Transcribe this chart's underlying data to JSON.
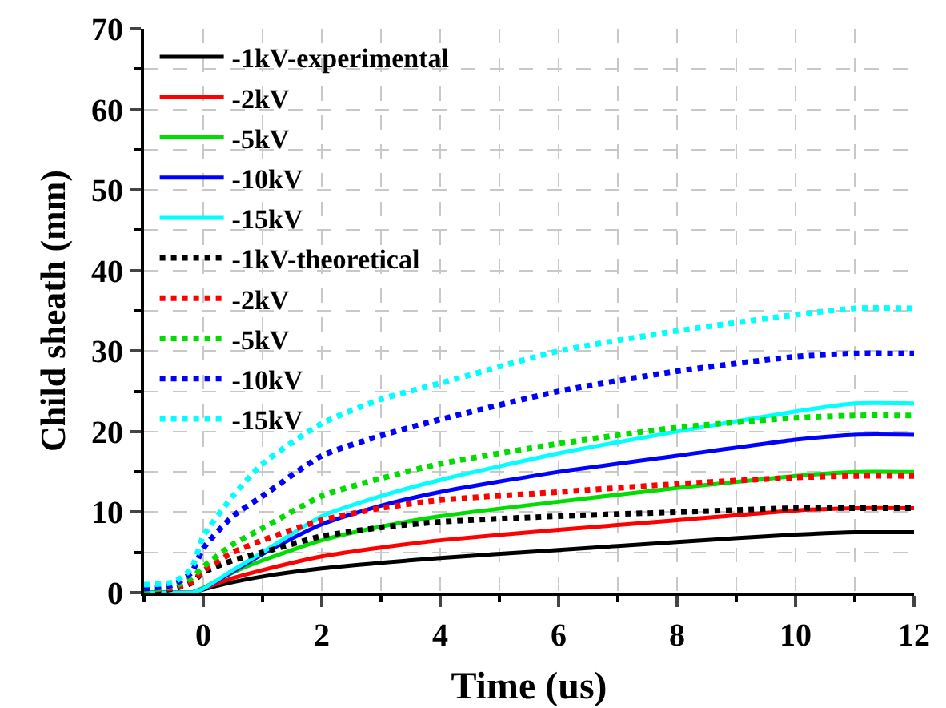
{
  "chart_data": {
    "type": "line",
    "xlabel": "Time (us)",
    "ylabel": "Child sheath (mm)",
    "xlim": [
      -1,
      12
    ],
    "ylim": [
      0,
      70
    ],
    "xticks": [
      0,
      2,
      4,
      6,
      8,
      10,
      12
    ],
    "yticks": [
      0,
      10,
      20,
      30,
      40,
      50,
      60,
      70
    ],
    "grid": true,
    "legend": "top left",
    "marker": "none",
    "x": [
      -1,
      -0.5,
      -0.2,
      0,
      0.5,
      1,
      2,
      3,
      4,
      6,
      8,
      10,
      11,
      12
    ],
    "series": [
      {
        "name": "-1kV-experimental",
        "color": "#000000",
        "line_style": "solid",
        "values": [
          0,
          0,
          0,
          0.4,
          1.3,
          2,
          3,
          3.7,
          4.3,
          5.3,
          6.3,
          7.2,
          7.5,
          7.5
        ]
      },
      {
        "name": "-2kV",
        "color": "#ff0000",
        "line_style": "solid",
        "values": [
          0,
          0,
          0,
          0.5,
          1.8,
          2.8,
          4.5,
          5.6,
          6.5,
          7.8,
          9,
          10.2,
          10.5,
          10.5
        ]
      },
      {
        "name": "-5kV",
        "color": "#00dd00",
        "line_style": "solid",
        "values": [
          0,
          0,
          0,
          0.6,
          2.5,
          4,
          6.5,
          8.2,
          9.5,
          11.3,
          13,
          14.5,
          15,
          15
        ]
      },
      {
        "name": "-10kV",
        "color": "#0000ff",
        "line_style": "solid",
        "values": [
          0,
          0,
          0,
          0.5,
          2.6,
          4.8,
          8.5,
          10.8,
          12.5,
          15,
          17,
          19,
          19.6,
          19.6
        ]
      },
      {
        "name": "-15kV",
        "color": "#00ffff",
        "line_style": "solid",
        "values": [
          0,
          0,
          0,
          0.5,
          2.8,
          5,
          9.5,
          12,
          14,
          17.3,
          20,
          22.5,
          23.5,
          23.5
        ]
      },
      {
        "name": "-1kV-theoretical",
        "color": "#000000",
        "line_style": "dotted",
        "values": [
          0,
          0.5,
          1.2,
          2.5,
          4,
          5,
          7,
          8.1,
          8.8,
          9.5,
          10,
          10.5,
          10.5,
          10.5
        ]
      },
      {
        "name": "-2kV",
        "color": "#ff0000",
        "line_style": "dotted",
        "values": [
          0.3,
          0.6,
          1.3,
          2.7,
          5,
          6.5,
          9,
          10.5,
          11.5,
          12.5,
          13.5,
          14.3,
          14.5,
          14.5
        ]
      },
      {
        "name": "-5kV",
        "color": "#00dd00",
        "line_style": "dotted",
        "values": [
          0.3,
          0.8,
          1.8,
          3.2,
          6,
          8,
          12,
          14.2,
          16,
          18.5,
          20.5,
          21.7,
          22,
          22
        ]
      },
      {
        "name": "-10kV",
        "color": "#0000ff",
        "line_style": "dotted",
        "values": [
          0.5,
          1,
          2.5,
          5.5,
          9.5,
          12,
          17,
          19.5,
          21.5,
          25,
          27.5,
          29.3,
          29.7,
          29.7
        ]
      },
      {
        "name": "-15kV",
        "color": "#00ffff",
        "line_style": "dotted",
        "values": [
          1,
          1.3,
          3,
          7,
          12,
          16,
          21,
          24,
          26,
          30,
          32.5,
          34.5,
          35.3,
          35.3
        ]
      }
    ]
  }
}
